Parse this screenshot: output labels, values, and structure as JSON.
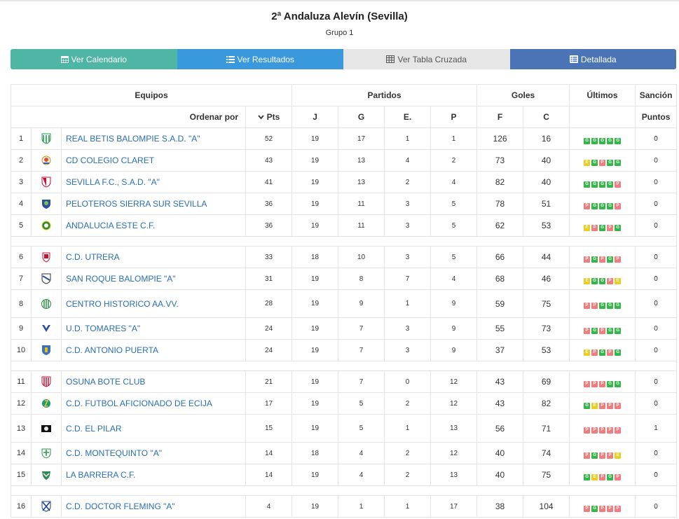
{
  "header": {
    "title": "2ª Andaluza Alevín (Sevilla)",
    "subtitle": "Grupo 1"
  },
  "buttons": {
    "calendar": "Ver Calendario",
    "results": "Ver Resultados",
    "cross": "Ver Tabla Cruzada",
    "detailed": "Detallada"
  },
  "colors": {
    "calendar": "#4fb5a5",
    "results": "#3a98dc",
    "cross": "#e6e6e6",
    "detailed": "#4a74b6",
    "win": "#36b54a",
    "draw": "#e8cf22",
    "loss": "#ef7d7d",
    "team_link": "#2a6fb0"
  },
  "table": {
    "group_headers": {
      "teams": "Equipos",
      "matches": "Partidos",
      "goals": "Goles",
      "last": "Últimos",
      "sanction": "Sanción"
    },
    "columns": {
      "sort_by": "Ordenar por",
      "pts": "Pts",
      "j": "J",
      "g": "G",
      "e": "E.",
      "p": "P",
      "f": "F",
      "c": "C",
      "points": "Puntos"
    },
    "rows": [
      {
        "pos": "1",
        "team": "REAL BETIS BALOMPIE S.A.D. \"A\"",
        "pts": "52",
        "j": "19",
        "g": "17",
        "e": "1",
        "p": "1",
        "f": "126",
        "c": "16",
        "last": [
          "G",
          "G",
          "G",
          "G",
          "G"
        ],
        "sanction": "0",
        "crest": "betis"
      },
      {
        "pos": "2",
        "team": "CD COLEGIO CLARET",
        "pts": "43",
        "j": "19",
        "g": "13",
        "e": "4",
        "p": "2",
        "f": "73",
        "c": "40",
        "last": [
          "E",
          "G",
          "P",
          "G",
          "G"
        ],
        "sanction": "0",
        "crest": "claret"
      },
      {
        "pos": "3",
        "team": "SEVILLA F.C., S.A.D. \"A\"",
        "pts": "41",
        "j": "19",
        "g": "13",
        "e": "2",
        "p": "4",
        "f": "82",
        "c": "40",
        "last": [
          "G",
          "G",
          "G",
          "G",
          "P"
        ],
        "sanction": "0",
        "crest": "sevilla"
      },
      {
        "pos": "4",
        "team": "PELOTEROS SIERRA SUR SEVILLA",
        "pts": "36",
        "j": "19",
        "g": "11",
        "e": "3",
        "p": "5",
        "f": "78",
        "c": "51",
        "last": [
          "P",
          "G",
          "G",
          "G",
          "P"
        ],
        "sanction": "0",
        "crest": "peloteros"
      },
      {
        "pos": "5",
        "team": "ANDALUCIA ESTE C.F.",
        "pts": "36",
        "j": "19",
        "g": "11",
        "e": "3",
        "p": "5",
        "f": "62",
        "c": "53",
        "last": [
          "E",
          "P",
          "G",
          "P",
          "G"
        ],
        "sanction": "0",
        "crest": "andalucia"
      },
      {
        "pos": "6",
        "team": "C.D. UTRERA",
        "pts": "33",
        "j": "18",
        "g": "10",
        "e": "3",
        "p": "5",
        "f": "66",
        "c": "44",
        "last": [
          "P",
          "G",
          "P",
          "G",
          "P"
        ],
        "sanction": "0",
        "crest": "utrera"
      },
      {
        "pos": "7",
        "team": "SAN ROQUE BALOMPIE \"A\"",
        "pts": "31",
        "j": "19",
        "g": "8",
        "e": "7",
        "p": "4",
        "f": "68",
        "c": "46",
        "last": [
          "E",
          "G",
          "G",
          "P",
          "E"
        ],
        "sanction": "0",
        "crest": "sanroque"
      },
      {
        "pos": "8",
        "team": "CENTRO HISTORICO AA.VV.",
        "pts": "28",
        "j": "19",
        "g": "9",
        "e": "1",
        "p": "9",
        "f": "59",
        "c": "75",
        "last": [
          "P",
          "P",
          "G",
          "G",
          "G"
        ],
        "sanction": "0",
        "crest": "centro"
      },
      {
        "pos": "9",
        "team": "U.D. TOMARES \"A\"",
        "pts": "24",
        "j": "19",
        "g": "7",
        "e": "3",
        "p": "9",
        "f": "55",
        "c": "73",
        "last": [
          "P",
          "G",
          "P",
          "G",
          "G"
        ],
        "sanction": "0",
        "crest": "tomares"
      },
      {
        "pos": "10",
        "team": "C.D. ANTONIO PUERTA",
        "pts": "24",
        "j": "19",
        "g": "7",
        "e": "3",
        "p": "9",
        "f": "37",
        "c": "53",
        "last": [
          "E",
          "P",
          "G",
          "P",
          "G"
        ],
        "sanction": "0",
        "crest": "puerta"
      },
      {
        "pos": "11",
        "team": "OSUNA BOTE CLUB",
        "pts": "21",
        "j": "19",
        "g": "7",
        "e": "0",
        "p": "12",
        "f": "43",
        "c": "69",
        "last": [
          "P",
          "P",
          "P",
          "G",
          "G"
        ],
        "sanction": "0",
        "crest": "osuna"
      },
      {
        "pos": "12",
        "team": "C.D. FUTBOL AFICIONADO DE ECIJA",
        "pts": "17",
        "j": "19",
        "g": "5",
        "e": "2",
        "p": "12",
        "f": "43",
        "c": "82",
        "last": [
          "G",
          "E",
          "P",
          "P",
          "P"
        ],
        "sanction": "0",
        "crest": "ecija"
      },
      {
        "pos": "13",
        "team": "C.D. EL PILAR",
        "pts": "15",
        "j": "19",
        "g": "5",
        "e": "1",
        "p": "13",
        "f": "56",
        "c": "71",
        "last": [
          "P",
          "P",
          "P",
          "P",
          "P"
        ],
        "sanction": "1",
        "crest": "pilar"
      },
      {
        "pos": "14",
        "team": "C.D. MONTEQUINTO \"A\"",
        "pts": "14",
        "j": "18",
        "g": "4",
        "e": "2",
        "p": "12",
        "f": "40",
        "c": "74",
        "last": [
          "P",
          "G",
          "P",
          "P",
          "E"
        ],
        "sanction": "0",
        "crest": "montequinto"
      },
      {
        "pos": "15",
        "team": "LA BARRERA C.F.",
        "pts": "14",
        "j": "19",
        "g": "4",
        "e": "2",
        "p": "13",
        "f": "40",
        "c": "75",
        "last": [
          "G",
          "E",
          "P",
          "G",
          "P"
        ],
        "sanction": "0",
        "crest": "barrera"
      },
      {
        "pos": "16",
        "team": "C.D. DOCTOR FLEMING \"A\"",
        "pts": "4",
        "j": "19",
        "g": "1",
        "e": "1",
        "p": "17",
        "f": "38",
        "c": "104",
        "last": [
          "P",
          "G",
          "P",
          "P",
          "P"
        ],
        "sanction": "0",
        "crest": "fleming"
      }
    ]
  }
}
